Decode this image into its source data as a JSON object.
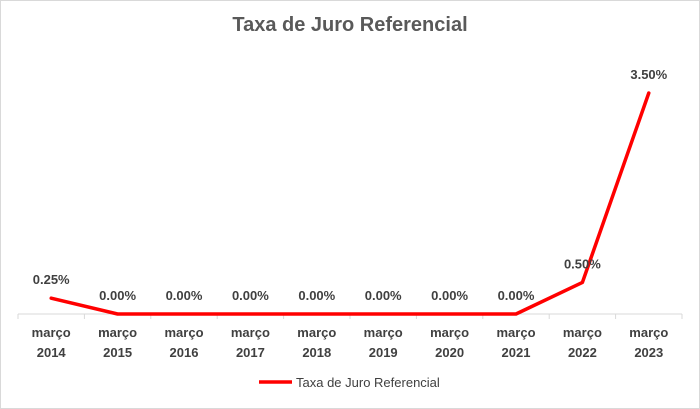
{
  "chart_data": {
    "type": "line",
    "title": "Taxa de Juro Referencial",
    "categories": [
      [
        "março",
        "2014"
      ],
      [
        "março",
        "2015"
      ],
      [
        "março",
        "2016"
      ],
      [
        "março",
        "2017"
      ],
      [
        "março",
        "2018"
      ],
      [
        "março",
        "2019"
      ],
      [
        "março",
        "2020"
      ],
      [
        "março",
        "2021"
      ],
      [
        "março",
        "2022"
      ],
      [
        "março",
        "2023"
      ]
    ],
    "series": [
      {
        "name": "Taxa de Juro Referencial",
        "values": [
          0.25,
          0.0,
          0.0,
          0.0,
          0.0,
          0.0,
          0.0,
          0.0,
          0.5,
          3.5
        ],
        "labels": [
          "0.25%",
          "0.00%",
          "0.00%",
          "0.00%",
          "0.00%",
          "0.00%",
          "0.00%",
          "0.00%",
          "0.50%",
          "3.50%"
        ],
        "color": "#ff0000"
      }
    ],
    "ylim": [
      0,
      3.5
    ],
    "grid": false,
    "legend": "bottom"
  }
}
